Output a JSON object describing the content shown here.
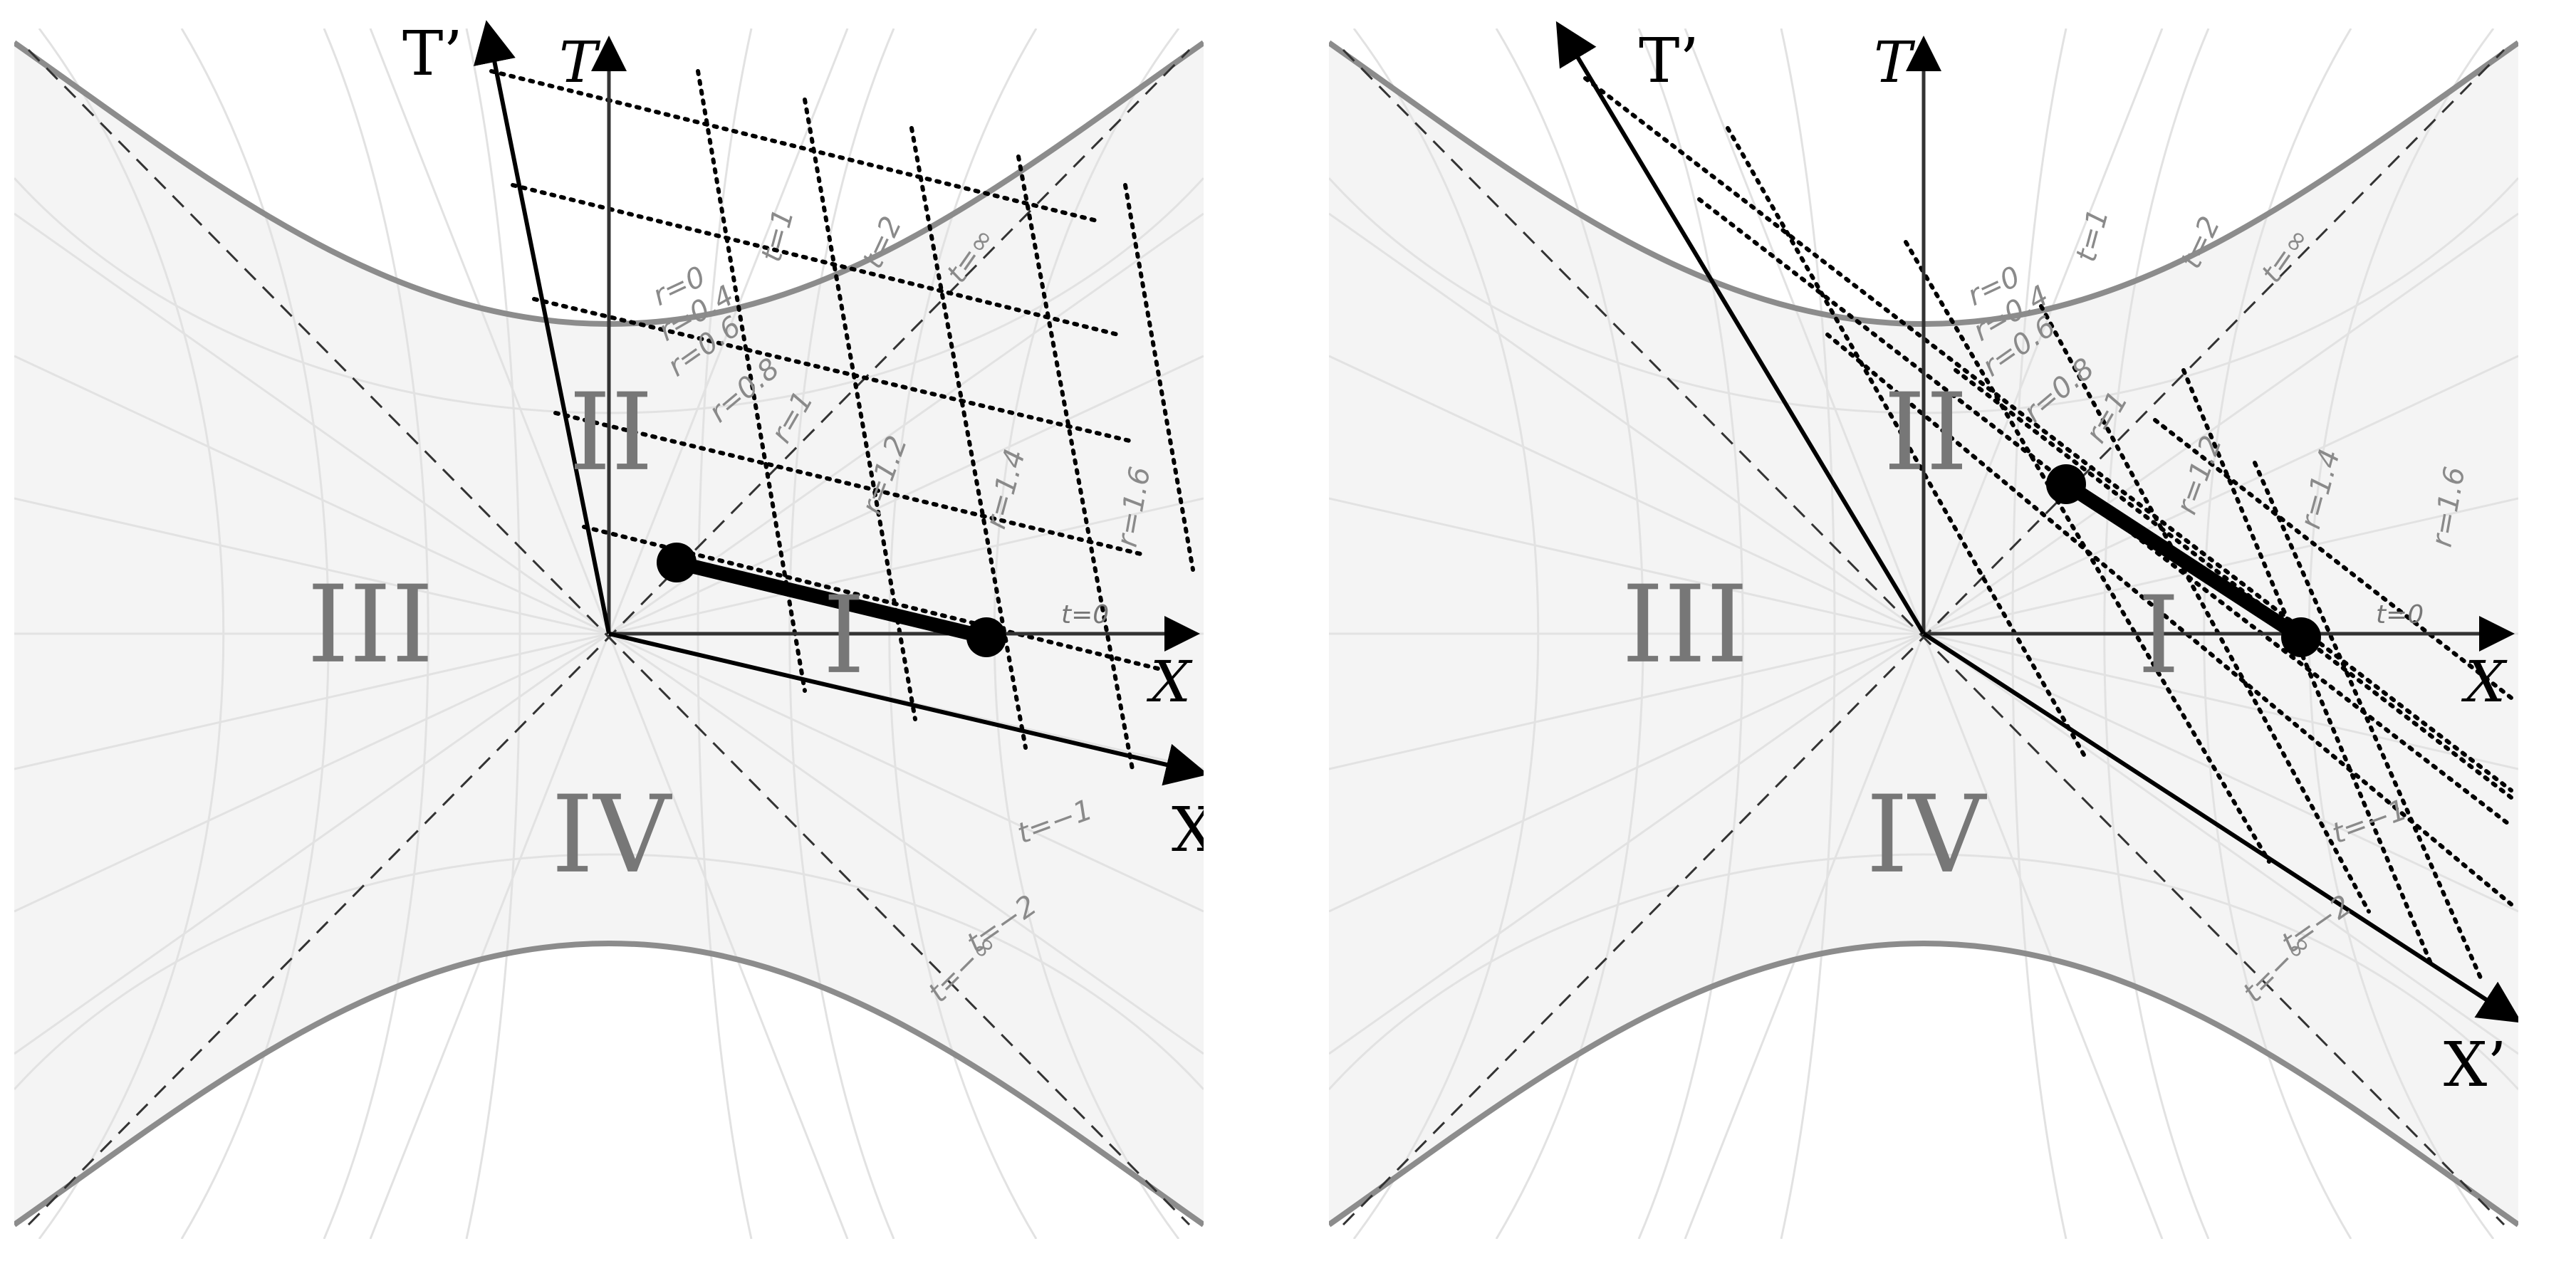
{
  "panels": [
    {
      "id": "left",
      "region_labels": [
        "I",
        "II",
        "III",
        "IV"
      ],
      "axes": {
        "t": "T",
        "x": "X",
        "t_prime": "T’",
        "x_prime": "X’"
      },
      "t_labels": [
        "t=0",
        "t=1",
        "t=2",
        "t=∞",
        "t=−1",
        "t=−2",
        "t=−∞"
      ],
      "r_labels": [
        "r=0",
        "r=0.4",
        "r=0.6",
        "r=0.8",
        "r=1",
        "r=1.2",
        "r=1.4",
        "r=1.6"
      ]
    },
    {
      "id": "right",
      "region_labels": [
        "I",
        "II",
        "III",
        "IV"
      ],
      "axes": {
        "t": "T",
        "x": "X",
        "t_prime": "T’",
        "x_prime": "X’"
      },
      "t_labels": [
        "t=0",
        "t=1",
        "t=2",
        "t=∞",
        "t=−1",
        "t=−2",
        "t=−∞"
      ],
      "r_labels": [
        "r=0",
        "r=0.4",
        "r=0.6",
        "r=0.8",
        "r=1",
        "r=1.2",
        "r=1.4",
        "r=1.6"
      ]
    }
  ],
  "colors": {
    "hyperbola": "#8c8c8c",
    "grid": "#e4e4e4",
    "background": "#f4f4f4",
    "axes": "#000000",
    "rod": "#000000"
  }
}
